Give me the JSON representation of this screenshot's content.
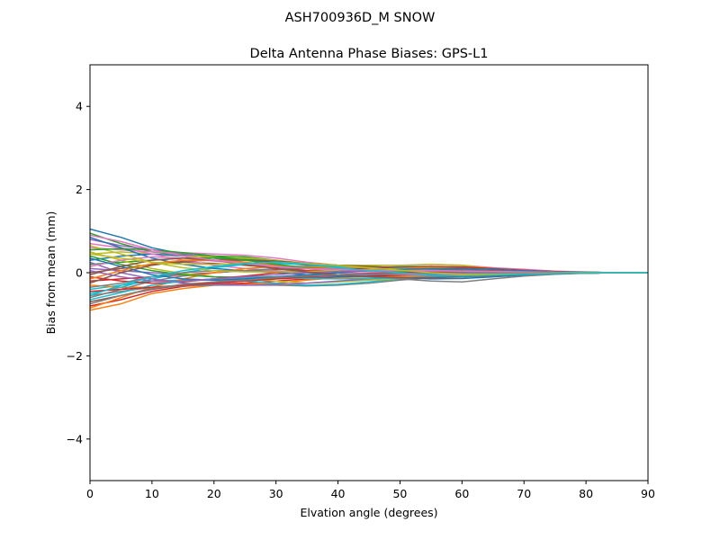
{
  "figure": {
    "suptitle": "ASH700936D_M    SNOW"
  },
  "chart_data": {
    "type": "line",
    "title": "Delta Antenna Phase Biases: GPS-L1",
    "xlabel": "Elvation angle (degrees)",
    "ylabel": "Bias from mean (mm)",
    "xlim": [
      0,
      90
    ],
    "ylim": [
      -5,
      5
    ],
    "xticks": [
      0,
      10,
      20,
      30,
      40,
      50,
      60,
      70,
      80,
      90
    ],
    "yticks": [
      -4,
      -2,
      0,
      2,
      4
    ],
    "ytick_labels": [
      "−4",
      "−2",
      "0",
      "2",
      "4"
    ],
    "grid": false,
    "legend": "none",
    "x": [
      0,
      5,
      10,
      15,
      20,
      25,
      30,
      35,
      40,
      45,
      50,
      55,
      60,
      65,
      70,
      75,
      80,
      85,
      90
    ],
    "series_colors": [
      "#1f77b4",
      "#ff7f0e",
      "#2ca02c",
      "#d62728",
      "#9467bd",
      "#8c564b",
      "#e377c2",
      "#7f7f7f",
      "#bcbd22",
      "#17becf"
    ],
    "series": [
      {
        "values": [
          1.05,
          0.85,
          0.6,
          0.45,
          0.35,
          0.3,
          0.25,
          0.18,
          0.12,
          0.08,
          0.05,
          0.04,
          0.03,
          0.02,
          0.01,
          0.0,
          0.0,
          0.0,
          0.0
        ]
      },
      {
        "values": [
          -0.9,
          -0.75,
          -0.5,
          -0.38,
          -0.3,
          -0.28,
          -0.25,
          -0.18,
          -0.12,
          -0.1,
          -0.08,
          -0.07,
          -0.06,
          -0.04,
          -0.02,
          -0.01,
          0.0,
          0.0,
          0.0
        ]
      },
      {
        "values": [
          0.95,
          0.7,
          0.5,
          0.42,
          0.4,
          0.38,
          0.3,
          0.2,
          0.15,
          0.12,
          0.1,
          0.08,
          0.05,
          0.03,
          0.02,
          0.01,
          0.0,
          0.0,
          0.0
        ]
      },
      {
        "values": [
          -0.8,
          -0.65,
          -0.45,
          -0.33,
          -0.28,
          -0.25,
          -0.2,
          -0.15,
          -0.1,
          -0.08,
          -0.06,
          -0.05,
          -0.04,
          -0.02,
          -0.01,
          0.0,
          0.0,
          0.0,
          0.0
        ]
      },
      {
        "values": [
          0.8,
          0.65,
          0.55,
          0.45,
          0.35,
          0.25,
          0.15,
          0.1,
          0.08,
          0.05,
          0.02,
          0.01,
          0.0,
          -0.01,
          -0.01,
          0.0,
          0.0,
          0.0,
          0.0
        ]
      },
      {
        "values": [
          -0.7,
          -0.55,
          -0.4,
          -0.3,
          -0.25,
          -0.2,
          -0.15,
          -0.12,
          -0.1,
          -0.06,
          -0.03,
          -0.02,
          -0.02,
          -0.01,
          0.0,
          0.0,
          0.0,
          0.0,
          0.0
        ]
      },
      {
        "values": [
          0.6,
          0.55,
          0.5,
          0.48,
          0.45,
          0.42,
          0.35,
          0.25,
          0.18,
          0.18,
          0.17,
          0.2,
          0.18,
          0.12,
          0.08,
          0.04,
          0.02,
          0.0,
          0.0
        ]
      },
      {
        "values": [
          -0.55,
          -0.45,
          -0.35,
          -0.32,
          -0.3,
          -0.3,
          -0.3,
          -0.32,
          -0.3,
          -0.25,
          -0.18,
          -0.12,
          -0.08,
          -0.05,
          -0.03,
          -0.02,
          -0.01,
          0.0,
          0.0
        ]
      },
      {
        "values": [
          0.45,
          0.5,
          0.45,
          0.4,
          0.38,
          0.35,
          0.3,
          0.22,
          0.18,
          0.18,
          0.18,
          0.2,
          0.18,
          0.1,
          0.06,
          0.03,
          0.01,
          0.0,
          0.0
        ]
      },
      {
        "values": [
          -0.4,
          -0.3,
          -0.2,
          -0.18,
          -0.18,
          -0.2,
          -0.25,
          -0.3,
          -0.28,
          -0.22,
          -0.15,
          -0.12,
          -0.1,
          -0.07,
          -0.04,
          -0.02,
          -0.01,
          0.0,
          0.0
        ]
      },
      {
        "values": [
          0.3,
          0.4,
          0.45,
          0.4,
          0.3,
          0.2,
          0.15,
          0.12,
          0.1,
          0.12,
          0.14,
          0.15,
          0.12,
          0.08,
          0.05,
          0.02,
          0.01,
          0.0,
          0.0
        ]
      },
      {
        "values": [
          -0.3,
          -0.35,
          -0.35,
          -0.3,
          -0.22,
          -0.15,
          -0.1,
          -0.08,
          -0.05,
          -0.03,
          -0.05,
          -0.08,
          -0.1,
          -0.08,
          -0.05,
          -0.02,
          -0.01,
          0.0,
          0.0
        ]
      },
      {
        "values": [
          0.2,
          0.25,
          0.3,
          0.35,
          0.35,
          0.32,
          0.28,
          0.22,
          0.18,
          0.15,
          0.12,
          0.1,
          0.08,
          0.05,
          0.03,
          0.02,
          0.01,
          0.0,
          0.0
        ]
      },
      {
        "values": [
          -0.2,
          -0.15,
          -0.1,
          -0.05,
          0.0,
          0.05,
          0.08,
          0.1,
          0.08,
          0.05,
          0.02,
          0.0,
          -0.02,
          -0.03,
          -0.02,
          -0.01,
          0.0,
          0.0,
          0.0
        ]
      },
      {
        "values": [
          0.1,
          0.05,
          0.0,
          -0.05,
          -0.1,
          -0.12,
          -0.12,
          -0.1,
          -0.08,
          -0.05,
          -0.04,
          -0.06,
          -0.08,
          -0.06,
          -0.04,
          -0.02,
          -0.01,
          0.0,
          0.0
        ]
      },
      {
        "values": [
          0.0,
          0.1,
          0.2,
          0.25,
          0.22,
          0.18,
          0.12,
          0.05,
          0.0,
          -0.03,
          -0.05,
          -0.05,
          -0.04,
          -0.03,
          -0.02,
          -0.01,
          0.0,
          0.0,
          0.0
        ]
      },
      {
        "values": [
          0.7,
          0.6,
          0.45,
          0.3,
          0.18,
          0.1,
          0.05,
          0.02,
          0.0,
          -0.02,
          -0.04,
          -0.05,
          -0.05,
          -0.04,
          -0.03,
          -0.01,
          0.0,
          0.0,
          0.0
        ]
      },
      {
        "values": [
          -0.6,
          -0.4,
          -0.2,
          -0.08,
          0.0,
          0.05,
          0.1,
          0.12,
          0.12,
          0.1,
          0.08,
          0.06,
          0.04,
          0.03,
          0.02,
          0.01,
          0.0,
          0.0,
          0.0
        ]
      },
      {
        "values": [
          0.5,
          0.3,
          0.1,
          -0.02,
          -0.1,
          -0.15,
          -0.2,
          -0.25,
          -0.22,
          -0.18,
          -0.14,
          -0.1,
          -0.08,
          -0.05,
          -0.03,
          -0.02,
          -0.01,
          0.0,
          0.0
        ]
      },
      {
        "values": [
          -0.5,
          -0.35,
          -0.15,
          0.0,
          0.12,
          0.2,
          0.22,
          0.2,
          0.15,
          0.12,
          0.1,
          0.1,
          0.08,
          0.05,
          0.03,
          0.01,
          0.0,
          0.0,
          0.0
        ]
      },
      {
        "values": [
          0.85,
          0.6,
          0.35,
          0.2,
          0.1,
          0.05,
          0.0,
          -0.05,
          -0.08,
          -0.1,
          -0.12,
          -0.15,
          -0.14,
          -0.1,
          -0.06,
          -0.03,
          -0.01,
          0.0,
          0.0
        ]
      },
      {
        "values": [
          -0.85,
          -0.6,
          -0.35,
          -0.15,
          0.0,
          0.1,
          0.15,
          0.15,
          0.12,
          0.1,
          0.08,
          0.05,
          0.02,
          0.0,
          -0.01,
          -0.01,
          0.0,
          0.0,
          0.0
        ]
      },
      {
        "values": [
          0.4,
          0.2,
          0.05,
          -0.05,
          -0.1,
          -0.12,
          -0.1,
          -0.08,
          -0.05,
          -0.02,
          0.0,
          0.02,
          0.02,
          0.01,
          0.0,
          0.0,
          0.0,
          0.0,
          0.0
        ]
      },
      {
        "values": [
          -0.1,
          -0.2,
          -0.25,
          -0.22,
          -0.15,
          -0.08,
          0.0,
          0.05,
          0.08,
          0.1,
          0.12,
          0.15,
          0.14,
          0.1,
          0.06,
          0.03,
          0.01,
          0.0,
          0.0
        ]
      },
      {
        "values": [
          0.25,
          0.0,
          -0.15,
          -0.25,
          -0.28,
          -0.3,
          -0.28,
          -0.25,
          -0.2,
          -0.15,
          -0.12,
          -0.1,
          -0.08,
          -0.06,
          -0.04,
          -0.02,
          -0.01,
          0.0,
          0.0
        ]
      },
      {
        "values": [
          -0.25,
          0.0,
          0.18,
          0.28,
          0.3,
          0.3,
          0.28,
          0.22,
          0.18,
          0.15,
          0.12,
          0.1,
          0.08,
          0.06,
          0.04,
          0.02,
          0.01,
          0.0,
          0.0
        ]
      },
      {
        "values": [
          0.15,
          0.3,
          0.38,
          0.35,
          0.28,
          0.22,
          0.15,
          0.1,
          0.05,
          0.02,
          -0.02,
          -0.05,
          -0.06,
          -0.05,
          -0.03,
          -0.02,
          -0.01,
          0.0,
          0.0
        ]
      },
      {
        "values": [
          -0.35,
          -0.25,
          -0.1,
          0.0,
          0.05,
          0.05,
          0.03,
          0.0,
          -0.05,
          -0.1,
          -0.15,
          -0.2,
          -0.22,
          -0.15,
          -0.08,
          -0.04,
          -0.01,
          0.0,
          0.0
        ]
      },
      {
        "values": [
          0.65,
          0.45,
          0.25,
          0.12,
          0.05,
          0.02,
          0.02,
          0.03,
          0.05,
          0.08,
          0.1,
          0.12,
          0.1,
          0.08,
          0.05,
          0.02,
          0.01,
          0.0,
          0.0
        ]
      },
      {
        "values": [
          -0.65,
          -0.48,
          -0.3,
          -0.2,
          -0.15,
          -0.12,
          -0.12,
          -0.14,
          -0.15,
          -0.14,
          -0.12,
          -0.1,
          -0.08,
          -0.05,
          -0.03,
          -0.02,
          -0.01,
          0.0,
          0.0
        ]
      },
      {
        "values": [
          0.35,
          0.15,
          -0.05,
          -0.15,
          -0.18,
          -0.15,
          -0.1,
          -0.05,
          0.0,
          0.05,
          0.08,
          0.1,
          0.1,
          0.08,
          0.05,
          0.02,
          0.01,
          0.0,
          0.0
        ]
      },
      {
        "values": [
          -0.15,
          0.05,
          0.22,
          0.3,
          0.3,
          0.25,
          0.18,
          0.12,
          0.08,
          0.05,
          0.02,
          0.0,
          -0.02,
          -0.02,
          -0.01,
          -0.01,
          0.0,
          0.0,
          0.0
        ]
      },
      {
        "values": [
          0.55,
          0.58,
          0.55,
          0.48,
          0.4,
          0.3,
          0.2,
          0.12,
          0.08,
          0.05,
          0.03,
          0.02,
          0.01,
          0.0,
          0.0,
          0.0,
          0.0,
          0.0,
          0.0
        ]
      },
      {
        "values": [
          -0.45,
          -0.4,
          -0.35,
          -0.3,
          -0.25,
          -0.2,
          -0.15,
          -0.1,
          -0.05,
          -0.02,
          0.0,
          0.02,
          0.02,
          0.02,
          0.01,
          0.0,
          0.0,
          0.0,
          0.0
        ]
      },
      {
        "values": [
          0.05,
          -0.1,
          -0.2,
          -0.2,
          -0.15,
          -0.1,
          -0.05,
          0.0,
          0.03,
          0.05,
          0.05,
          0.04,
          0.02,
          0.01,
          0.0,
          0.0,
          0.0,
          0.0,
          0.0
        ]
      },
      {
        "values": [
          -0.05,
          0.15,
          0.3,
          0.35,
          0.3,
          0.2,
          0.1,
          0.02,
          -0.05,
          -0.1,
          -0.12,
          -0.12,
          -0.1,
          -0.07,
          -0.04,
          -0.02,
          -0.01,
          0.0,
          0.0
        ]
      },
      {
        "values": [
          0.9,
          0.75,
          0.55,
          0.4,
          0.3,
          0.22,
          0.15,
          0.1,
          0.08,
          0.06,
          0.05,
          0.05,
          0.04,
          0.03,
          0.02,
          0.01,
          0.0,
          0.0,
          0.0
        ]
      },
      {
        "values": [
          -0.75,
          -0.55,
          -0.38,
          -0.28,
          -0.22,
          -0.18,
          -0.12,
          -0.08,
          -0.05,
          -0.03,
          -0.02,
          -0.02,
          -0.02,
          -0.01,
          -0.01,
          0.0,
          0.0,
          0.0,
          0.0
        ]
      },
      {
        "values": [
          0.45,
          0.35,
          0.25,
          0.2,
          0.2,
          0.22,
          0.25,
          0.22,
          0.18,
          0.12,
          0.06,
          0.0,
          -0.04,
          -0.04,
          -0.03,
          -0.01,
          0.0,
          0.0,
          0.0
        ]
      },
      {
        "values": [
          -0.55,
          -0.3,
          -0.1,
          0.05,
          0.15,
          0.22,
          0.25,
          0.2,
          0.12,
          0.05,
          0.0,
          -0.05,
          -0.08,
          -0.06,
          -0.04,
          -0.02,
          -0.01,
          0.0,
          0.0
        ]
      }
    ]
  }
}
